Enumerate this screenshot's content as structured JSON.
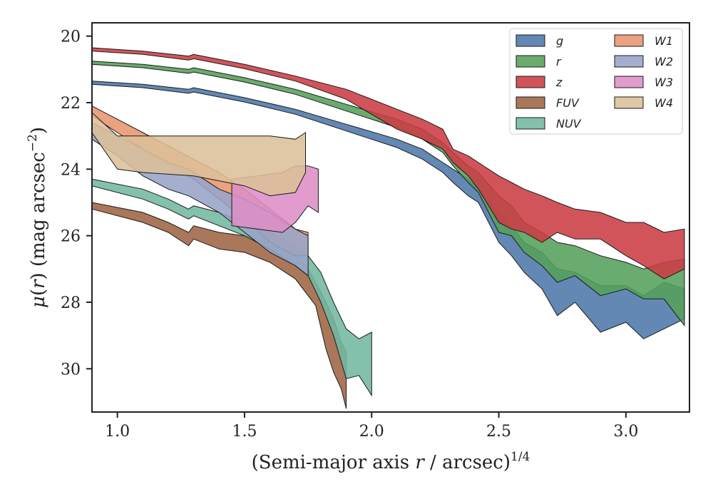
{
  "chart_data": {
    "type": "area",
    "xlabel": "(Semi-major axis r / arcsec)^1/4",
    "xlabel_parts": {
      "prefix": "(Semi-major axis ",
      "var": "r",
      "middle": " / arcsec)",
      "sup": "1/4"
    },
    "ylabel": "μ(r) (mag arcsec^−2)",
    "ylabel_parts": {
      "mu": "μ",
      "open": "(",
      "var": "r",
      "close": ") (mag arcsec",
      "sup": "−2",
      "end": ")"
    },
    "xlim": [
      0.9,
      3.25
    ],
    "ylim": [
      31.3,
      19.6
    ],
    "y_inverted": true,
    "xticks": [
      1.0,
      1.5,
      2.0,
      2.5,
      3.0
    ],
    "xtick_labels": [
      "1.0",
      "1.5",
      "2.0",
      "2.5",
      "3.0"
    ],
    "yticks": [
      20,
      22,
      24,
      26,
      28,
      30
    ],
    "ytick_labels": [
      "20",
      "22",
      "24",
      "26",
      "28",
      "30"
    ],
    "grid": false,
    "legend_position": "top-right",
    "legend_columns": 2,
    "series": [
      {
        "name": "g",
        "color": "#4c78a8",
        "band": [
          [
            0.9,
            21.35,
            21.45
          ],
          [
            1.1,
            21.45,
            21.55
          ],
          [
            1.28,
            21.6,
            21.72
          ],
          [
            1.3,
            21.55,
            21.68
          ],
          [
            1.5,
            21.85,
            21.98
          ],
          [
            1.7,
            22.2,
            22.35
          ],
          [
            1.9,
            22.65,
            22.85
          ],
          [
            2.1,
            23.1,
            23.35
          ],
          [
            2.2,
            23.4,
            23.7
          ],
          [
            2.28,
            23.8,
            24.1
          ],
          [
            2.32,
            24.0,
            24.4
          ],
          [
            2.38,
            24.3,
            24.8
          ],
          [
            2.42,
            24.6,
            25.0
          ],
          [
            2.5,
            25.3,
            26.2
          ],
          [
            2.55,
            25.7,
            26.6
          ],
          [
            2.6,
            26.2,
            27.1
          ],
          [
            2.67,
            26.5,
            27.6
          ],
          [
            2.73,
            27.0,
            28.4
          ],
          [
            2.8,
            27.1,
            28.0
          ],
          [
            2.9,
            27.5,
            28.9
          ],
          [
            3.0,
            27.5,
            28.6
          ],
          [
            3.07,
            27.8,
            29.1
          ],
          [
            3.15,
            27.4,
            28.8
          ],
          [
            3.23,
            27.6,
            28.5
          ]
        ]
      },
      {
        "name": "r",
        "color": "#55a05b",
        "band": [
          [
            0.9,
            20.75,
            20.85
          ],
          [
            1.1,
            20.85,
            20.95
          ],
          [
            1.28,
            21.0,
            21.12
          ],
          [
            1.3,
            20.95,
            21.08
          ],
          [
            1.5,
            21.25,
            21.38
          ],
          [
            1.7,
            21.6,
            21.75
          ],
          [
            1.9,
            22.05,
            22.25
          ],
          [
            2.1,
            22.5,
            22.75
          ],
          [
            2.2,
            22.8,
            23.1
          ],
          [
            2.28,
            23.2,
            23.5
          ],
          [
            2.32,
            23.5,
            23.9
          ],
          [
            2.38,
            23.9,
            24.4
          ],
          [
            2.42,
            24.1,
            24.7
          ],
          [
            2.5,
            24.8,
            25.9
          ],
          [
            2.55,
            25.1,
            26.0
          ],
          [
            2.6,
            25.6,
            26.5
          ],
          [
            2.67,
            25.9,
            26.9
          ],
          [
            2.73,
            26.2,
            27.4
          ],
          [
            2.8,
            26.3,
            27.2
          ],
          [
            2.9,
            26.6,
            27.8
          ],
          [
            3.0,
            26.8,
            27.6
          ],
          [
            3.07,
            27.0,
            27.9
          ],
          [
            3.15,
            26.8,
            27.9
          ],
          [
            3.23,
            26.7,
            28.7
          ]
        ]
      },
      {
        "name": "z",
        "color": "#cc3c44",
        "band": [
          [
            0.9,
            20.35,
            20.45
          ],
          [
            1.1,
            20.45,
            20.55
          ],
          [
            1.28,
            20.6,
            20.72
          ],
          [
            1.3,
            20.55,
            20.68
          ],
          [
            1.5,
            20.85,
            20.98
          ],
          [
            1.7,
            21.2,
            21.35
          ],
          [
            1.9,
            21.6,
            21.9
          ],
          [
            2.1,
            22.2,
            22.8
          ],
          [
            2.2,
            22.5,
            23.1
          ],
          [
            2.28,
            22.8,
            23.4
          ],
          [
            2.32,
            23.4,
            23.8
          ],
          [
            2.38,
            23.6,
            24.2
          ],
          [
            2.42,
            23.8,
            24.6
          ],
          [
            2.5,
            24.2,
            25.6
          ],
          [
            2.55,
            24.4,
            25.8
          ],
          [
            2.6,
            24.6,
            25.9
          ],
          [
            2.67,
            24.8,
            26.2
          ],
          [
            2.73,
            25.0,
            25.9
          ],
          [
            2.8,
            25.2,
            26.1
          ],
          [
            2.9,
            25.3,
            26.1
          ],
          [
            3.0,
            25.6,
            26.6
          ],
          [
            3.07,
            25.6,
            26.9
          ],
          [
            3.15,
            25.9,
            27.3
          ],
          [
            3.23,
            25.8,
            27.0
          ]
        ]
      },
      {
        "name": "FUV",
        "color": "#9e6444",
        "band": [
          [
            0.9,
            25.0,
            25.2
          ],
          [
            1.1,
            25.3,
            25.6
          ],
          [
            1.2,
            25.6,
            25.9
          ],
          [
            1.28,
            25.9,
            26.3
          ],
          [
            1.3,
            25.7,
            26.1
          ],
          [
            1.4,
            25.9,
            26.4
          ],
          [
            1.5,
            26.0,
            26.5
          ],
          [
            1.6,
            26.2,
            26.8
          ],
          [
            1.7,
            26.6,
            27.3
          ],
          [
            1.75,
            27.0,
            27.8
          ],
          [
            1.78,
            27.4,
            28.1
          ],
          [
            1.82,
            28.0,
            29.4
          ],
          [
            1.85,
            28.5,
            30.1
          ],
          [
            1.88,
            29.2,
            30.6
          ],
          [
            1.9,
            29.5,
            31.2
          ]
        ]
      },
      {
        "name": "NUV",
        "color": "#72b8a2",
        "band": [
          [
            0.9,
            24.3,
            24.5
          ],
          [
            1.1,
            24.6,
            24.9
          ],
          [
            1.2,
            24.9,
            25.2
          ],
          [
            1.28,
            25.2,
            25.5
          ],
          [
            1.3,
            25.1,
            25.4
          ],
          [
            1.4,
            25.3,
            25.7
          ],
          [
            1.5,
            25.6,
            26.0
          ],
          [
            1.6,
            25.9,
            26.4
          ],
          [
            1.7,
            26.3,
            26.9
          ],
          [
            1.75,
            26.6,
            27.2
          ],
          [
            1.8,
            27.1,
            28.0
          ],
          [
            1.85,
            28.0,
            29.0
          ],
          [
            1.9,
            28.8,
            30.3
          ],
          [
            1.95,
            29.1,
            30.2
          ],
          [
            2.0,
            28.9,
            30.8
          ]
        ]
      },
      {
        "name": "W1",
        "color": "#e8956e",
        "band": [
          [
            0.9,
            22.1,
            22.4
          ],
          [
            1.0,
            22.5,
            22.9
          ],
          [
            1.1,
            22.9,
            23.4
          ],
          [
            1.2,
            23.3,
            23.9
          ],
          [
            1.3,
            23.7,
            24.3
          ],
          [
            1.4,
            24.1,
            24.9
          ],
          [
            1.5,
            24.6,
            25.5
          ],
          [
            1.6,
            25.2,
            26.2
          ],
          [
            1.7,
            25.8,
            26.6
          ],
          [
            1.75,
            25.9,
            26.6
          ]
        ]
      },
      {
        "name": "W2",
        "color": "#97a4c8",
        "band": [
          [
            0.9,
            22.6,
            23.1
          ],
          [
            1.0,
            23.0,
            23.6
          ],
          [
            1.1,
            23.4,
            24.2
          ],
          [
            1.2,
            23.8,
            24.6
          ],
          [
            1.28,
            24.0,
            24.8
          ],
          [
            1.4,
            24.6,
            25.3
          ],
          [
            1.5,
            24.9,
            25.9
          ],
          [
            1.6,
            25.3,
            26.5
          ],
          [
            1.7,
            25.8,
            26.9
          ],
          [
            1.75,
            26.0,
            27.2
          ]
        ]
      },
      {
        "name": "W3",
        "color": "#dd8ec6",
        "band": [
          [
            1.45,
            24.3,
            25.7
          ],
          [
            1.55,
            24.2,
            25.8
          ],
          [
            1.65,
            24.1,
            25.9
          ],
          [
            1.7,
            23.9,
            25.6
          ],
          [
            1.75,
            23.9,
            25.1
          ],
          [
            1.79,
            24.0,
            25.3
          ]
        ]
      },
      {
        "name": "W4",
        "color": "#dcbf98",
        "band": [
          [
            0.9,
            22.3,
            22.9
          ],
          [
            1.0,
            23.0,
            24.0
          ],
          [
            1.1,
            23.0,
            24.1
          ],
          [
            1.3,
            23.0,
            24.2
          ],
          [
            1.5,
            23.0,
            24.5
          ],
          [
            1.6,
            23.0,
            24.8
          ],
          [
            1.7,
            23.1,
            24.7
          ],
          [
            1.74,
            22.9,
            24.1
          ]
        ]
      }
    ]
  }
}
